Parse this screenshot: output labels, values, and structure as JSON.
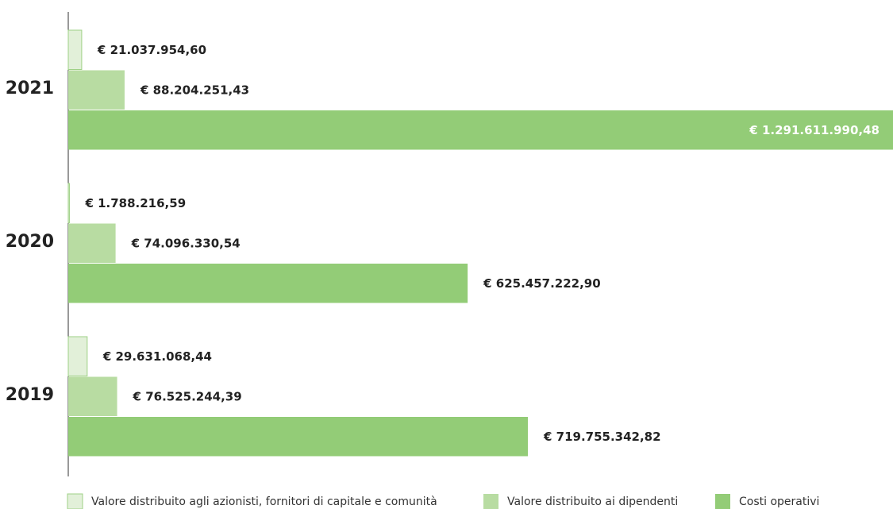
{
  "chart_data": {
    "type": "bar",
    "orientation": "horizontal",
    "categories": [
      "2021",
      "2020",
      "2019"
    ],
    "series": [
      {
        "name": "Valore distribuito agli azionisti, fornitori di capitale e comunità",
        "color": "#e2f0d9",
        "values": [
          21037954.6,
          1788216.59,
          29631068.44
        ],
        "value_labels": [
          "€ 21.037.954,60",
          "€ 1.788.216,59",
          "€ 29.631.068,44"
        ]
      },
      {
        "name": "Valore distribuito ai dipendenti",
        "color": "#b8dca2",
        "values": [
          88204251.43,
          74096330.54,
          76525244.39
        ],
        "value_labels": [
          "€ 88.204.251,43",
          "€ 74.096.330,54",
          "€ 76.525.244,39"
        ]
      },
      {
        "name": "Costi operativi",
        "color": "#93cc77",
        "values": [
          1291611990.48,
          625457222.9,
          719755342.82
        ],
        "value_labels": [
          "€ 1.291.611.990,48",
          "€ 625.457.222,90",
          "€ 719.755.342,82"
        ]
      }
    ],
    "legend": "bottom"
  }
}
